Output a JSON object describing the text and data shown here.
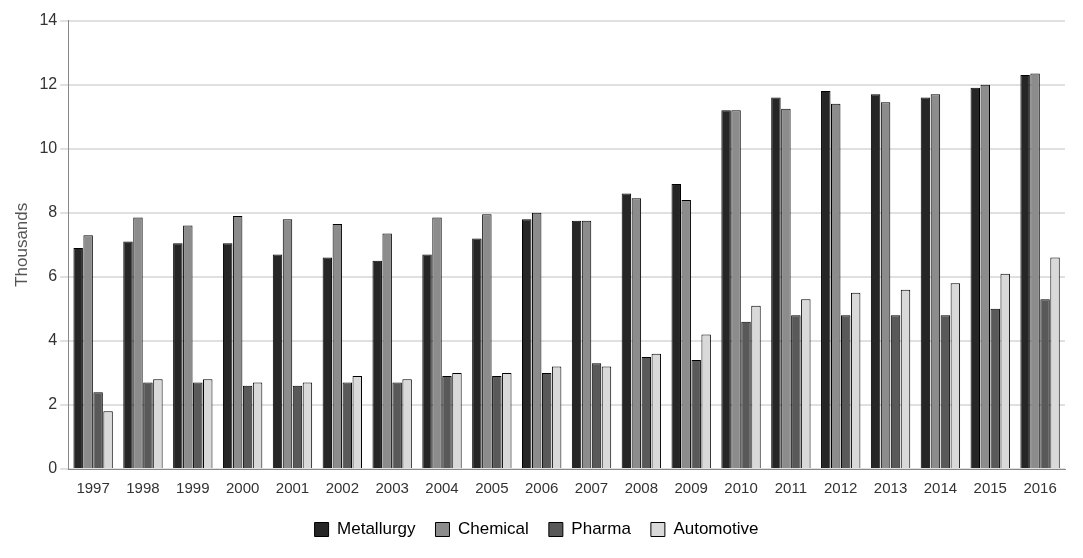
{
  "chart_data": {
    "type": "bar",
    "ylabel": "Thousands",
    "categories": [
      "1997",
      "1998",
      "1999",
      "2000",
      "2001",
      "2002",
      "2003",
      "2004",
      "2005",
      "2006",
      "2007",
      "2008",
      "2009",
      "2010",
      "2011",
      "2012",
      "2013",
      "2014",
      "2015",
      "2016"
    ],
    "series": [
      {
        "name": "Metallurgy",
        "color": "#262626",
        "values": [
          6.9,
          7.1,
          7.05,
          7.05,
          6.7,
          6.6,
          6.5,
          6.7,
          7.2,
          7.8,
          7.75,
          8.6,
          8.9,
          11.2,
          11.6,
          11.8,
          11.7,
          11.6,
          11.9,
          12.3
        ]
      },
      {
        "name": "Chemical",
        "color": "#8c8c8c",
        "values": [
          7.3,
          7.85,
          7.6,
          7.9,
          7.8,
          7.65,
          7.35,
          7.85,
          7.95,
          8.0,
          7.75,
          8.45,
          8.4,
          11.2,
          11.25,
          11.4,
          11.45,
          11.7,
          12.0,
          12.35
        ]
      },
      {
        "name": "Pharma",
        "color": "#595959",
        "values": [
          2.4,
          2.7,
          2.7,
          2.6,
          2.6,
          2.7,
          2.7,
          2.9,
          2.9,
          3.0,
          3.3,
          3.5,
          3.4,
          4.6,
          4.8,
          4.8,
          4.8,
          4.8,
          5.0,
          5.3
        ]
      },
      {
        "name": "Automotive",
        "color": "#d9d9d9",
        "values": [
          1.8,
          2.8,
          2.8,
          2.7,
          2.7,
          2.9,
          2.8,
          3.0,
          3.0,
          3.2,
          3.2,
          3.6,
          4.2,
          5.1,
          5.3,
          5.5,
          5.6,
          5.8,
          6.1,
          6.6
        ]
      }
    ],
    "ylim": [
      0,
      14
    ],
    "yticks": [
      0,
      2,
      4,
      6,
      8,
      10,
      12,
      14
    ],
    "grid": "y",
    "legend": "bottom"
  }
}
